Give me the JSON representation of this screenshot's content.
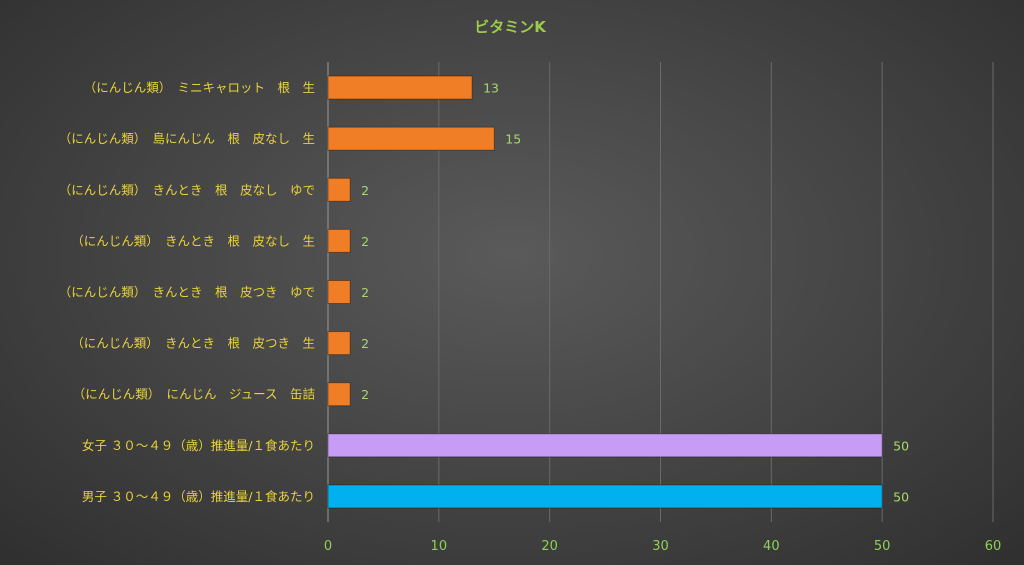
{
  "chart_data": {
    "type": "bar",
    "orientation": "horizontal",
    "title": "ビタミンK",
    "categories": [
      "（にんじん類）　ミニキャロット　根　生",
      "（にんじん類）　島にんじん　根　皮なし　生",
      "（にんじん類）　きんとき　根　皮なし　ゆで",
      "（にんじん類）　きんとき　根　皮なし　生",
      "（にんじん類）　きんとき　根　皮つき　ゆで",
      "（にんじん類）　きんとき　根　皮つき　生",
      "（にんじん類）　にんじん　ジュース　缶詰",
      "女子 ３０～４９（歳）推進量/１食あたり",
      "男子 ３０～４９（歳）推進量/１食あたり"
    ],
    "values": [
      13,
      15,
      2,
      2,
      2,
      2,
      2,
      50,
      50
    ],
    "value_labels": [
      "13",
      "15",
      "2",
      "2",
      "2",
      "2",
      "2",
      "50",
      "50"
    ],
    "bar_colors": [
      "#f07e26",
      "#f07e26",
      "#f07e26",
      "#f07e26",
      "#f07e26",
      "#f07e26",
      "#f07e26",
      "#c79cf5",
      "#00b0ef"
    ],
    "xlim": [
      0,
      60
    ],
    "xticks": [
      0,
      10,
      20,
      30,
      40,
      50,
      60
    ],
    "xtick_labels": [
      "0",
      "10",
      "20",
      "30",
      "40",
      "50",
      "60"
    ],
    "grid": true,
    "xlabel": "",
    "ylabel": ""
  }
}
